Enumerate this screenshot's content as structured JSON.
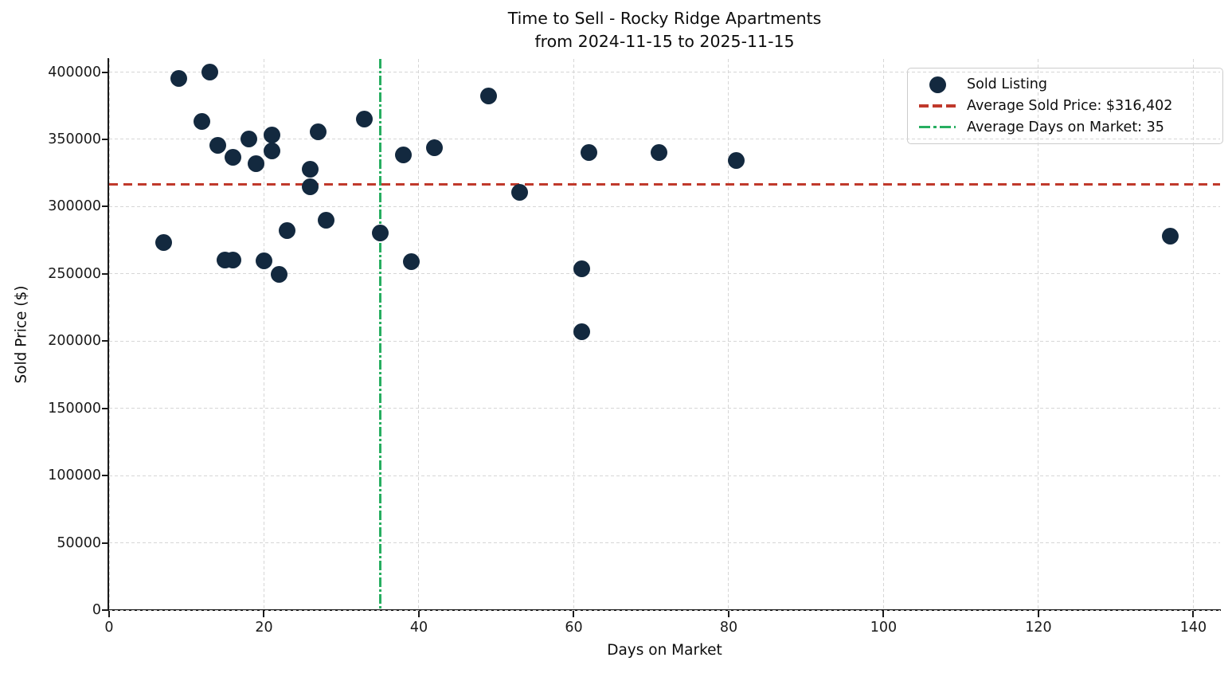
{
  "title": {
    "line1": "Time to Sell - Rocky Ridge Apartments",
    "line2": "from 2024-11-15 to 2025-11-15"
  },
  "legend": {
    "items": [
      {
        "label": "Sold Listing",
        "marker": "dot-icon"
      },
      {
        "label": "Average Sold Price: $316,402",
        "marker": "dashed-line-icon"
      },
      {
        "label": "Average Days on Market: 35",
        "marker": "dashdot-line-icon"
      }
    ]
  },
  "colors": {
    "point": "#13293f",
    "avg_price_line": "#c0392b",
    "avg_days_line": "#27ae60",
    "grid": "#d6d6d6"
  },
  "chart_data": {
    "type": "scatter",
    "title": "Time to Sell - Rocky Ridge Apartments\nfrom 2024-11-15 to 2025-11-15",
    "xlabel": "Days on Market",
    "ylabel": "Sold Price ($)",
    "xlim": [
      0,
      143.45
    ],
    "ylim": [
      0,
      409800
    ],
    "xticks": [
      0,
      20,
      40,
      60,
      80,
      100,
      120,
      140
    ],
    "yticks": [
      0,
      50000,
      100000,
      150000,
      200000,
      250000,
      300000,
      350000,
      400000
    ],
    "grid": true,
    "legend_position": "upper right",
    "series": [
      {
        "name": "Sold Listing",
        "type": "scatter",
        "color": "#13293f",
        "points": [
          [
            7,
            273500
          ],
          [
            9,
            395000
          ],
          [
            12,
            363500
          ],
          [
            13,
            400000
          ],
          [
            14,
            345500
          ],
          [
            15,
            260000
          ],
          [
            16,
            260000
          ],
          [
            16,
            336500
          ],
          [
            18,
            350000
          ],
          [
            19,
            332000
          ],
          [
            20,
            259500
          ],
          [
            21,
            353000
          ],
          [
            21,
            341500
          ],
          [
            22,
            249500
          ],
          [
            23,
            282000
          ],
          [
            26,
            328000
          ],
          [
            26,
            315000
          ],
          [
            27,
            355500
          ],
          [
            28,
            290000
          ],
          [
            33,
            365000
          ],
          [
            35,
            280500
          ],
          [
            38,
            338500
          ],
          [
            39,
            259000
          ],
          [
            42,
            344000
          ],
          [
            49,
            382500
          ],
          [
            53,
            310500
          ],
          [
            61,
            254000
          ],
          [
            61,
            207000
          ],
          [
            62,
            340000
          ],
          [
            71,
            340000
          ],
          [
            81,
            334500
          ],
          [
            137,
            278000
          ]
        ]
      }
    ],
    "reference_lines": [
      {
        "name": "average_sold_price",
        "axis": "y",
        "value": 316402,
        "style": "dashed",
        "color": "#c0392b"
      },
      {
        "name": "average_days_on_market",
        "axis": "x",
        "value": 35,
        "style": "dashdot",
        "color": "#27ae60"
      }
    ]
  }
}
